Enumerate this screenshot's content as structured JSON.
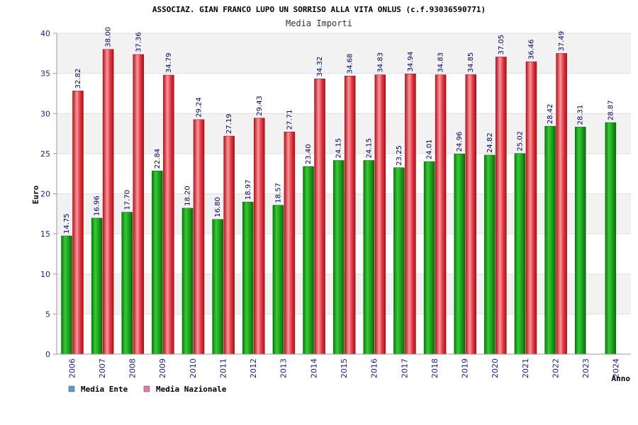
{
  "chart_data": {
    "type": "bar",
    "title": "ASSOCIAZ. GIAN FRANCO LUPO UN SORRISO ALLA VITA ONLUS (c.f.93036590771)",
    "subtitle": "Media Importi",
    "xlabel": "Anno",
    "ylabel": "Euro",
    "ylim": [
      0,
      40
    ],
    "yticks": [
      0,
      5,
      10,
      15,
      20,
      25,
      30,
      35,
      40
    ],
    "grid": true,
    "legend_position": "bottom-left",
    "categories": [
      "2006",
      "2007",
      "2008",
      "2009",
      "2010",
      "2011",
      "2012",
      "2013",
      "2014",
      "2015",
      "2016",
      "2017",
      "2018",
      "2019",
      "2020",
      "2021",
      "2022",
      "2023",
      "2024"
    ],
    "series": [
      {
        "name": "Media Ente",
        "legend_color": "#5b9bd5",
        "bar_color": "#22aa22",
        "values": [
          14.75,
          16.96,
          17.7,
          22.84,
          18.2,
          16.8,
          18.97,
          18.57,
          23.4,
          24.15,
          24.15,
          23.25,
          24.01,
          24.96,
          24.82,
          25.02,
          28.42,
          28.31,
          28.87
        ],
        "labels": [
          "14.75",
          "16.96",
          "17.70",
          "22.84",
          "18.20",
          "16.80",
          "18.97",
          "18.57",
          "23.40",
          "24.15",
          "24.15",
          "23.25",
          "24.01",
          "24.96",
          "24.82",
          "25.02",
          "28.42",
          "28.31",
          "28.87"
        ]
      },
      {
        "name": "Media Nazionale",
        "legend_color": "#e377a8",
        "bar_color": "#e8202a",
        "values": [
          32.82,
          38.0,
          37.36,
          34.79,
          29.24,
          27.19,
          29.43,
          27.71,
          34.32,
          34.68,
          34.83,
          34.94,
          34.83,
          34.85,
          37.05,
          36.46,
          37.49,
          null,
          null
        ],
        "labels": [
          "32.82",
          "38.00",
          "37.36",
          "34.79",
          "29.24",
          "27.19",
          "29.43",
          "27.71",
          "34.32",
          "34.68",
          "34.83",
          "34.94",
          "34.83",
          "34.85",
          "37.05",
          "36.46",
          "37.49",
          null,
          null
        ]
      }
    ]
  }
}
